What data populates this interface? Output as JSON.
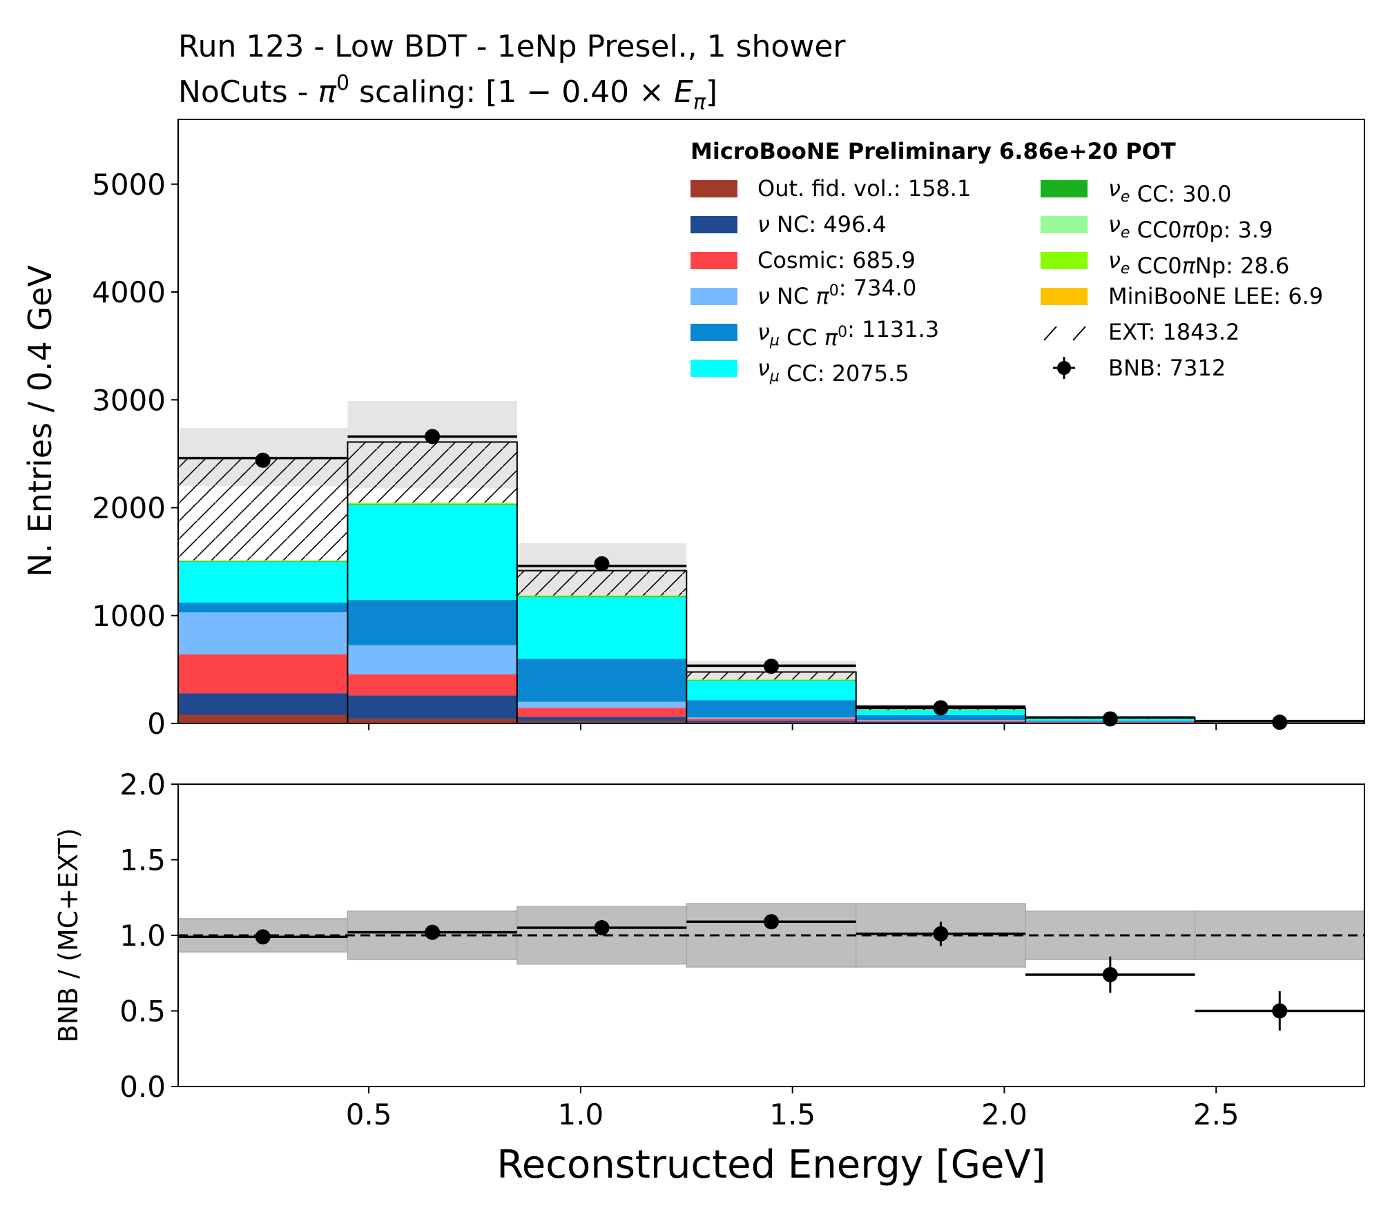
{
  "chart_data": {
    "type": "bar",
    "subtype": "stacked-histogram-with-ratio",
    "title_line1": "Run 123 - Low BDT - 1eNp Presel., 1 shower",
    "title_line2": {
      "prefix": "NoCuts - ",
      "pi_symbol": "π",
      "sup": "0",
      "scaling_text": " scaling: [1 − 0.40 × ",
      "e_symbol": "E",
      "e_sub": "π",
      "close": "]"
    },
    "xlabel": "Reconstructed Energy [GeV]",
    "ylabel": "N. Entries / 0.4 GeV",
    "ratio_ylabel": "BNB / (MC+EXT)",
    "xlim": [
      0.05,
      2.85
    ],
    "ylim": [
      0,
      5600
    ],
    "ratio_ylim": [
      0,
      2
    ],
    "bin_edges": [
      0.05,
      0.45,
      0.85,
      1.25,
      1.65,
      2.05,
      2.45,
      2.85
    ],
    "x_ticks": [
      "0.5",
      "1.0",
      "1.5",
      "2.0",
      "2.5"
    ],
    "x_tick_values": [
      0.5,
      1.0,
      1.5,
      2.0,
      2.5
    ],
    "y_ticks": [
      "0",
      "1000",
      "2000",
      "3000",
      "4000",
      "5000"
    ],
    "y_tick_values": [
      0,
      1000,
      2000,
      3000,
      4000,
      5000
    ],
    "ratio_ticks": [
      "0.0",
      "0.5",
      "1.0",
      "1.5",
      "2.0"
    ],
    "ratio_tick_values": [
      0,
      0.5,
      1.0,
      1.5,
      2.0
    ],
    "legend_header": "MicroBooNE Preliminary 6.86e+20 POT",
    "stack": [
      {
        "name": "Out. fid. vol.",
        "label": "Out. fid. vol.: 158.1",
        "color": "#a13a28",
        "values": [
          80,
          45,
          20,
          8,
          3,
          1,
          1
        ]
      },
      {
        "name": "nu NC",
        "label": "ν NC: 496.4",
        "color": "#1f4a8f",
        "values": [
          200,
          215,
          40,
          18,
          12,
          6,
          4
        ]
      },
      {
        "name": "Cosmic",
        "label": "Cosmic: 685.9",
        "color": "#ff4449",
        "values": [
          360,
          195,
          85,
          20,
          12,
          6,
          3
        ]
      },
      {
        "name": "nu NC pi0",
        "label": "ν NC π⁰: 734.0",
        "color": "#78baff",
        "values": [
          390,
          270,
          55,
          10,
          5,
          2,
          1
        ]
      },
      {
        "name": "numu CC pi0",
        "label": "ν_μ CC π⁰: 1131.3",
        "color": "#0a87d1",
        "values": [
          90,
          420,
          400,
          160,
          45,
          12,
          4
        ]
      },
      {
        "name": "numu CC",
        "label": "ν_μ CC: 2075.5",
        "color": "#00ffff",
        "values": [
          380,
          880,
          570,
          180,
          45,
          13,
          3
        ]
      },
      {
        "name": "nue CC",
        "label": "ν_e CC: 30.0",
        "color": "#19b01e",
        "values": [
          5,
          8,
          7,
          5,
          3,
          1.5,
          0.5
        ]
      },
      {
        "name": "nue CC0pi0p",
        "label": "ν_e CC0π0p: 3.9",
        "color": "#98f99a",
        "values": [
          1,
          1,
          1,
          0.5,
          0.2,
          0.1,
          0.1
        ]
      },
      {
        "name": "nue CC0piNp",
        "label": "ν_e CC0πNp: 28.6",
        "color": "#88ff00",
        "values": [
          4,
          8,
          8,
          5,
          2,
          1,
          0.5
        ]
      },
      {
        "name": "MiniBooNE LEE",
        "label": "MiniBooNE LEE: 6.9",
        "color": "#ffc000",
        "values": [
          3,
          2,
          1,
          0.5,
          0.2,
          0.1,
          0.1
        ]
      },
      {
        "name": "EXT",
        "label": "EXT: 1843.2",
        "color": "hatch",
        "values": [
          950,
          565,
          230,
          70,
          12,
          10,
          5
        ]
      }
    ],
    "total_mc_ext": [
      2460,
      2640,
      1410,
      475,
      140,
      52,
      22
    ],
    "mc_line": [
      2460,
      2660,
      1460,
      535,
      155,
      55,
      22
    ],
    "syst_band": {
      "low": [
        2200,
        2180,
        1150,
        400,
        110,
        40,
        16
      ],
      "high": [
        2740,
        2990,
        1670,
        580,
        175,
        65,
        28
      ]
    },
    "bnb": {
      "label": "BNB: 7312",
      "values": [
        2440,
        2660,
        1480,
        530,
        145,
        42,
        11
      ],
      "errors": [
        49,
        52,
        38,
        23,
        12,
        6.5,
        3.3
      ]
    },
    "ratio": {
      "values": [
        0.99,
        1.02,
        1.05,
        1.09,
        1.01,
        0.74,
        0.5
      ],
      "errors": [
        0.02,
        0.02,
        0.03,
        0.02,
        0.08,
        0.12,
        0.13
      ],
      "band_low": [
        0.89,
        0.84,
        0.81,
        0.79,
        0.79,
        0.84,
        0.84
      ],
      "band_high": [
        1.11,
        1.16,
        1.19,
        1.21,
        1.21,
        1.16,
        1.16
      ],
      "reference": 1.0
    }
  }
}
